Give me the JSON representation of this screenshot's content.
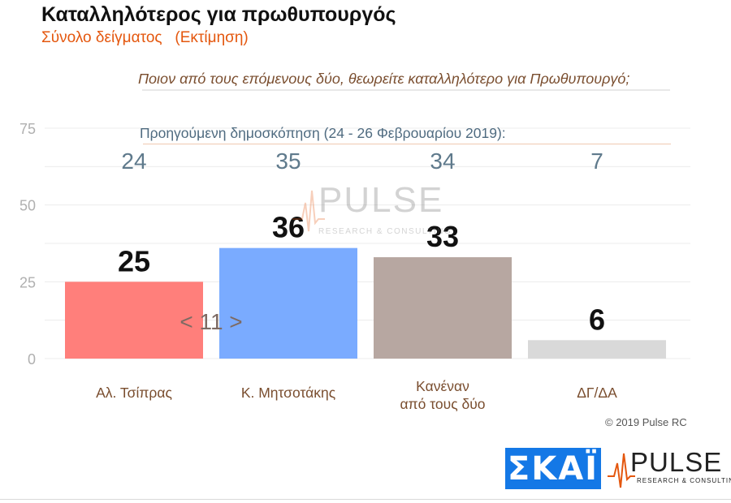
{
  "header": {
    "title": "Καταλληλότερος για πρωθυπουργός",
    "subtitle": "Σύνολο δείγματος   (Εκτίμηση)",
    "question": "Ποιον από τους επόμενους δύο, θεωρείτε καταλληλότερο για Πρωθυπουργό;"
  },
  "previous_poll": {
    "label": "Προηγούμενη δημοσκόπηση (24 - 26 Φεβρουαρίου 2019):"
  },
  "difference_annotation": "< 11 >",
  "footer": {
    "copyright": "© 2019 Pulse RC",
    "channel_logo": "ΣΚΑΪ",
    "brand_logo": "PULSE",
    "brand_sub": "RESEARCH & CONSULTING"
  },
  "watermark": {
    "text": "PULSE",
    "sub": "RESEARCH & CONSULTING"
  },
  "chart_data": {
    "type": "bar",
    "categories": [
      [
        "Αλ. Τσίπρας"
      ],
      [
        "Κ. Μητσοτάκης"
      ],
      [
        "Κανέναν",
        "από τους δύο"
      ],
      [
        "ΔΓ/ΔΑ"
      ]
    ],
    "values": [
      25,
      36,
      33,
      6
    ],
    "previous_values": [
      24,
      35,
      34,
      7
    ],
    "colors": [
      "#ff7f7b",
      "#7aabff",
      "#b7a7a1",
      "#d9d9d9"
    ],
    "ylim": [
      0,
      75
    ],
    "yticks": [
      0,
      25,
      50,
      75
    ],
    "grid": true
  }
}
